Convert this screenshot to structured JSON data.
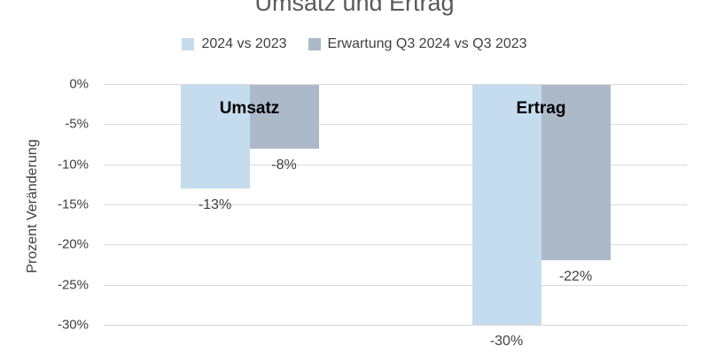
{
  "chart_data": {
    "type": "bar",
    "title": "Umsatz und Ertrag",
    "ylabel": "Prozent Veränderung",
    "categories": [
      "Umsatz",
      "Ertrag"
    ],
    "series": [
      {
        "name": "2024 vs 2023",
        "color": "#C5DBEE",
        "values": [
          -13,
          -30
        ],
        "labels": [
          "-13%",
          "-30%"
        ]
      },
      {
        "name": "Erwartung Q3 2024 vs Q3 2023",
        "color": "#ACB9C9",
        "values": [
          -8,
          -22
        ],
        "labels": [
          "-8%",
          "-22%"
        ]
      }
    ],
    "ylim": [
      -30,
      0
    ],
    "yticks": [
      {
        "value": 0,
        "label": "0%"
      },
      {
        "value": -5,
        "label": "-5%"
      },
      {
        "value": -10,
        "label": "-10%"
      },
      {
        "value": -15,
        "label": "-15%"
      },
      {
        "value": -20,
        "label": "-20%"
      },
      {
        "value": -25,
        "label": "-25%"
      },
      {
        "value": -30,
        "label": "-30%"
      }
    ],
    "grid": true,
    "legend_position": "top"
  },
  "colors": {
    "title_text": "#595959",
    "axis_text": "#404040",
    "gridline": "#D9D9D9",
    "category_label": "#000000"
  }
}
